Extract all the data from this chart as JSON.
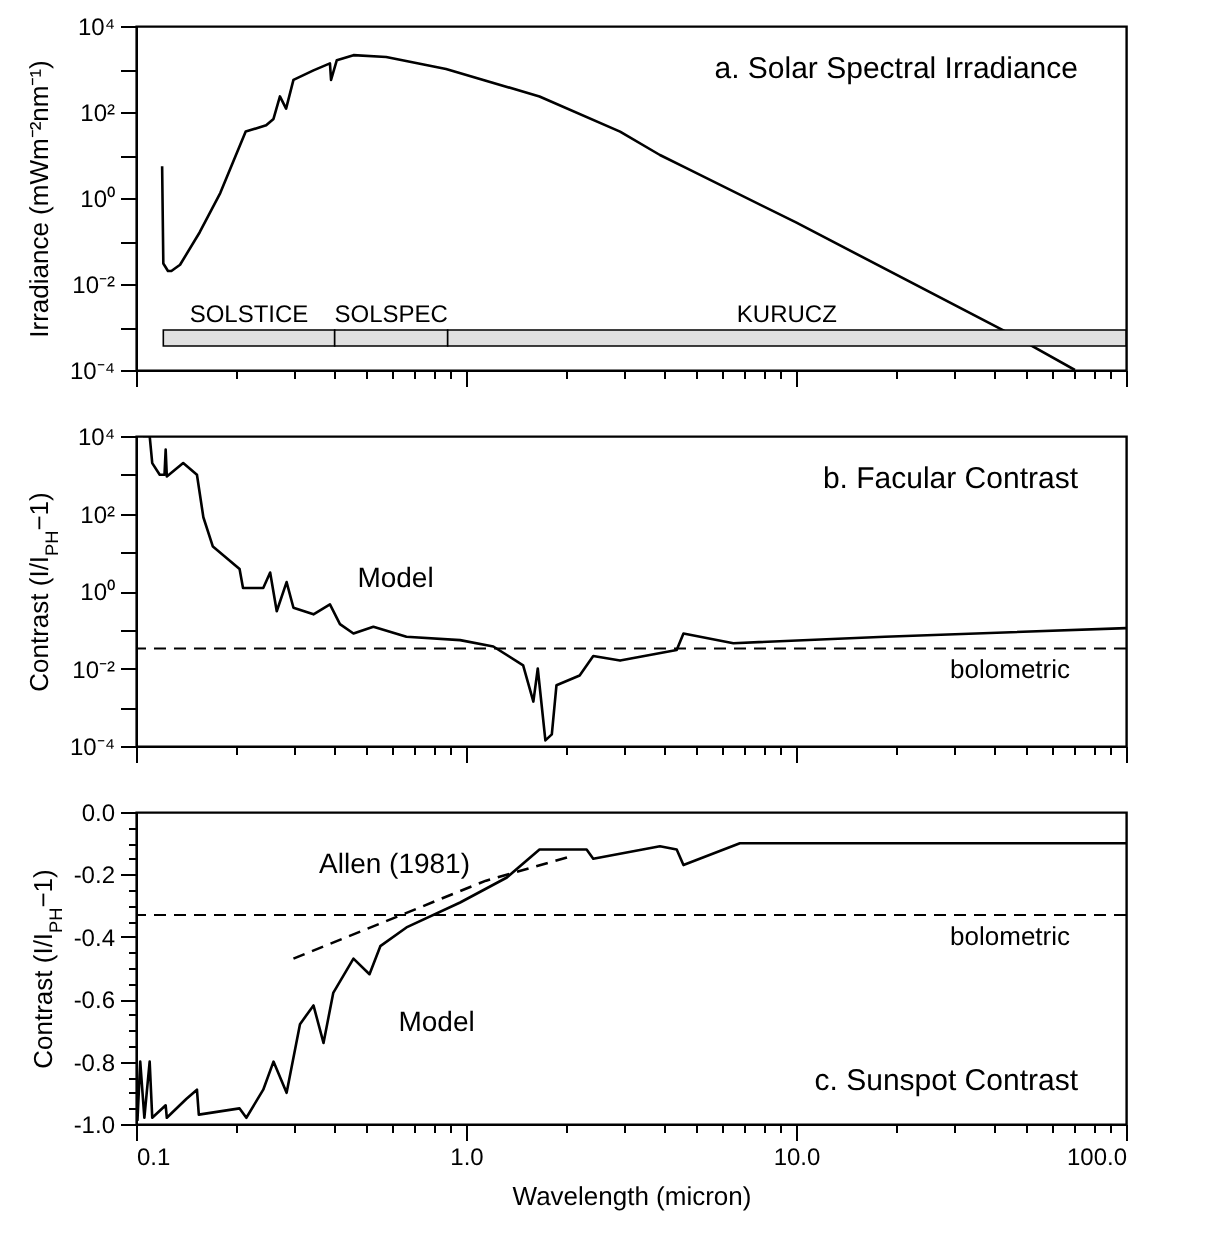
{
  "chart_data": [
    {
      "type": "line",
      "title": "a. Solar Spectral Irradiance",
      "ylabel": "Irradiance (mWm⁻²nm⁻¹)",
      "log": "xy",
      "tick_labels": "y",
      "xlim": [
        0.1,
        100
      ],
      "xticks": [
        {
          "value": 0.1,
          "label": null
        },
        {
          "value": 0.2,
          "label": null
        },
        {
          "value": 0.3,
          "label": null
        },
        {
          "value": 0.4,
          "label": null
        },
        {
          "value": 0.5,
          "label": null
        },
        {
          "value": 0.6,
          "label": null
        },
        {
          "value": 0.7,
          "label": null
        },
        {
          "value": 0.8,
          "label": null
        },
        {
          "value": 0.9,
          "label": null
        },
        {
          "value": 1,
          "label": null
        },
        {
          "value": 2,
          "label": null
        },
        {
          "value": 3,
          "label": null
        },
        {
          "value": 4,
          "label": null
        },
        {
          "value": 5,
          "label": null
        },
        {
          "value": 6,
          "label": null
        },
        {
          "value": 7,
          "label": null
        },
        {
          "value": 8,
          "label": null
        },
        {
          "value": 9,
          "label": null
        },
        {
          "value": 10,
          "label": null
        },
        {
          "value": 20,
          "label": null
        },
        {
          "value": 30,
          "label": null
        },
        {
          "value": 40,
          "label": null
        },
        {
          "value": 50,
          "label": null
        },
        {
          "value": 60,
          "label": null
        },
        {
          "value": 70,
          "label": null
        },
        {
          "value": 80,
          "label": null
        },
        {
          "value": 90,
          "label": null
        },
        {
          "value": 100,
          "label": null
        }
      ],
      "ylim": [
        0.0001,
        10000
      ],
      "yticks": [
        {
          "value": 0.0001,
          "label": "10⁻⁴"
        },
        {
          "value": 0.001,
          "label": null
        },
        {
          "value": 0.01,
          "label": "10⁻²"
        },
        {
          "value": 0.1,
          "label": null
        },
        {
          "value": 1,
          "label": "10⁰"
        },
        {
          "value": 10,
          "label": null
        },
        {
          "value": 100,
          "label": "10²"
        },
        {
          "value": 1000,
          "label": null
        },
        {
          "value": 10000,
          "label": "10⁴"
        }
      ],
      "series": [
        {
          "color": "#000000",
          "x": [
            0.12,
            0.121,
            0.125,
            0.128,
            0.136,
            0.156,
            0.18,
            0.197,
            0.215,
            0.248,
            0.261,
            0.273,
            0.285,
            0.3,
            0.345,
            0.387,
            0.39,
            0.406,
            0.456,
            0.573,
            0.87,
            1.67,
            2.93,
            3.87,
            4.64,
            10,
            45.6,
            70
          ],
          "values": [
            5.5,
            0.03,
            0.02,
            0.02,
            0.028,
            0.16,
            1.3,
            7,
            35,
            49,
            69,
            230,
            120,
            560,
            930,
            1350,
            560,
            1600,
            2100,
            1900,
            1000,
            230,
            35,
            10,
            5,
            0.27,
            0.00063,
            0.0001
          ]
        }
      ],
      "bands": [
        {
          "axis": "x",
          "from": 0.121,
          "to": 0.4,
          "label": "SOLSTICE",
          "color": "#e0e0e0"
        },
        {
          "axis": "x",
          "from": 0.4,
          "to": 0.88,
          "label": "SOLSPEC",
          "color": "#e0e0e0"
        },
        {
          "axis": "x",
          "from": 0.88,
          "to": 100,
          "label": "KURUCZ",
          "color": "#e0e0e0"
        }
      ]
    },
    {
      "type": "line",
      "title": "b. Facular Contrast",
      "ylabel": "Contrast (I/I$_{PH}$−1)",
      "log": "xy",
      "tick_labels": "y",
      "xlim": [
        0.1,
        100
      ],
      "xticks": [
        {
          "value": 0.1,
          "label": null
        },
        {
          "value": 0.2,
          "label": null
        },
        {
          "value": 0.3,
          "label": null
        },
        {
          "value": 0.4,
          "label": null
        },
        {
          "value": 0.5,
          "label": null
        },
        {
          "value": 0.6,
          "label": null
        },
        {
          "value": 0.7,
          "label": null
        },
        {
          "value": 0.8,
          "label": null
        },
        {
          "value": 0.9,
          "label": null
        },
        {
          "value": 1,
          "label": null
        },
        {
          "value": 2,
          "label": null
        },
        {
          "value": 3,
          "label": null
        },
        {
          "value": 4,
          "label": null
        },
        {
          "value": 5,
          "label": null
        },
        {
          "value": 6,
          "label": null
        },
        {
          "value": 7,
          "label": null
        },
        {
          "value": 8,
          "label": null
        },
        {
          "value": 9,
          "label": null
        },
        {
          "value": 10,
          "label": null
        },
        {
          "value": 20,
          "label": null
        },
        {
          "value": 30,
          "label": null
        },
        {
          "value": 40,
          "label": null
        },
        {
          "value": 50,
          "label": null
        },
        {
          "value": 60,
          "label": null
        },
        {
          "value": 70,
          "label": null
        },
        {
          "value": 80,
          "label": null
        },
        {
          "value": 90,
          "label": null
        },
        {
          "value": 100,
          "label": null
        }
      ],
      "ylim": [
        0.0001,
        10000
      ],
      "yticks": [
        {
          "value": 0.0001,
          "label": "10⁻⁴"
        },
        {
          "value": 0.001,
          "label": null
        },
        {
          "value": 0.01,
          "label": "10⁻²"
        },
        {
          "value": 0.1,
          "label": null
        },
        {
          "value": 1,
          "label": "10⁰"
        },
        {
          "value": 10,
          "label": null
        },
        {
          "value": 100,
          "label": "10²"
        },
        {
          "value": 1000,
          "label": null
        },
        {
          "value": 10000,
          "label": "10⁴"
        }
      ],
      "series": [
        {
          "name": "Model",
          "color": "#000000",
          "x": [
            0.105,
            0.11,
            0.112,
            0.118,
            0.122,
            0.123,
            0.124,
            0.139,
            0.153,
            0.16,
            0.171,
            0.206,
            0.211,
            0.243,
            0.255,
            0.267,
            0.286,
            0.3,
            0.345,
            0.387,
            0.415,
            0.456,
            0.524,
            0.66,
            0.96,
            1.21,
            1.49,
            1.6,
            1.65,
            1.74,
            1.82,
            1.88,
            2.21,
            2.43,
            2.93,
            4.35,
            4.56,
            6.46,
            18.6,
            100
          ],
          "values": [
            10000,
            10000,
            2000,
            1000,
            1000,
            4500,
            900,
            2000,
            1000,
            80,
            14,
            3.7,
            1.2,
            1.2,
            3,
            0.3,
            1.7,
            0.37,
            0.25,
            0.45,
            0.14,
            0.08,
            0.12,
            0.066,
            0.054,
            0.037,
            0.012,
            0.0014,
            0.01,
            0.00014,
            0.0002,
            0.0037,
            0.0066,
            0.021,
            0.016,
            0.03,
            0.08,
            0.045,
            0.066,
            0.11
          ]
        }
      ],
      "ref_lines": [
        {
          "axis": "y",
          "value": 0.033,
          "label": "bolometric",
          "line_style": "dashed"
        }
      ]
    },
    {
      "type": "line",
      "title": "c. Sunspot Contrast",
      "xlabel": "Wavelength (micron)",
      "ylabel": "Contrast (I/I$_{PH}$−1)",
      "log": "x",
      "xlim": [
        0.1,
        100
      ],
      "xticks": [
        0.1,
        {
          "value": 0.2,
          "label": null
        },
        {
          "value": 0.3,
          "label": null
        },
        {
          "value": 0.4,
          "label": null
        },
        {
          "value": 0.5,
          "label": null
        },
        {
          "value": 0.6,
          "label": null
        },
        {
          "value": 0.7,
          "label": null
        },
        {
          "value": 0.8,
          "label": null
        },
        {
          "value": 0.9,
          "label": null
        },
        {
          "value": 1,
          "label": "1.0"
        },
        {
          "value": 2,
          "label": null
        },
        {
          "value": 3,
          "label": null
        },
        {
          "value": 4,
          "label": null
        },
        {
          "value": 5,
          "label": null
        },
        {
          "value": 6,
          "label": null
        },
        {
          "value": 7,
          "label": null
        },
        {
          "value": 8,
          "label": null
        },
        {
          "value": 9,
          "label": null
        },
        {
          "value": 10,
          "label": "10.0"
        },
        {
          "value": 20,
          "label": null
        },
        {
          "value": 30,
          "label": null
        },
        {
          "value": 40,
          "label": null
        },
        {
          "value": 50,
          "label": null
        },
        {
          "value": 60,
          "label": null
        },
        {
          "value": 70,
          "label": null
        },
        {
          "value": 80,
          "label": null
        },
        {
          "value": 90,
          "label": null
        },
        {
          "value": 100,
          "label": "100.0"
        }
      ],
      "ylim": [
        -1,
        0
      ],
      "yticks": [
        {
          "value": -1,
          "label": "-1.0"
        },
        {
          "value": -0.95,
          "label": null
        },
        {
          "value": -0.9,
          "label": null
        },
        {
          "value": -0.85,
          "label": null
        },
        -0.8,
        {
          "value": -0.75,
          "label": null
        },
        {
          "value": -0.7,
          "label": null
        },
        {
          "value": -0.65,
          "label": null
        },
        -0.6,
        {
          "value": -0.55,
          "label": null
        },
        {
          "value": -0.5,
          "label": null
        },
        {
          "value": -0.45,
          "label": null
        },
        -0.4,
        {
          "value": -0.35,
          "label": null
        },
        {
          "value": -0.3,
          "label": null
        },
        {
          "value": -0.25,
          "label": null
        },
        -0.2,
        {
          "value": -0.15,
          "label": null
        },
        {
          "value": -0.1,
          "label": null
        },
        {
          "value": -0.05,
          "label": null
        },
        {
          "value": 0,
          "label": "0.0"
        }
      ],
      "series": [
        {
          "name": "Model",
          "color": "#000000",
          "x": [
            0.101,
            0.103,
            0.106,
            0.11,
            0.112,
            0.123,
            0.124,
            0.142,
            0.153,
            0.155,
            0.206,
            0.216,
            0.243,
            0.261,
            0.286,
            0.314,
            0.345,
            0.37,
            0.396,
            0.456,
            0.51,
            0.55,
            0.66,
            0.96,
            1.33,
            1.67,
            2.32,
            2.43,
            3.87,
            4.35,
            4.56,
            6.76,
            100
          ],
          "values": [
            -0.99,
            -0.8,
            -0.98,
            -0.8,
            -0.98,
            -0.94,
            -0.98,
            -0.92,
            -0.89,
            -0.97,
            -0.95,
            -0.98,
            -0.89,
            -0.8,
            -0.9,
            -0.68,
            -0.62,
            -0.74,
            -0.58,
            -0.47,
            -0.52,
            -0.43,
            -0.37,
            -0.29,
            -0.21,
            -0.12,
            -0.12,
            -0.15,
            -0.11,
            -0.12,
            -0.17,
            -0.1,
            -0.1
          ]
        },
        {
          "name": "Allen (1981)",
          "color": "#000000",
          "line_style": "dashed",
          "x": [
            0.3,
            1.15,
            2.11
          ],
          "values": [
            -0.47,
            -0.22,
            -0.14
          ]
        }
      ],
      "ref_lines": [
        {
          "axis": "y",
          "value": -0.33,
          "label": "bolometric",
          "line_style": "dashed"
        }
      ]
    }
  ]
}
